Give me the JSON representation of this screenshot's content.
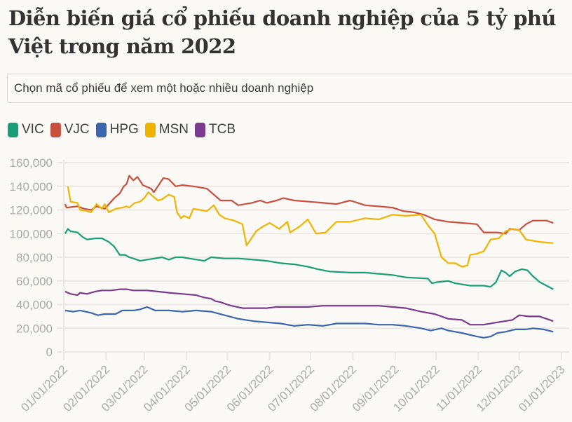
{
  "title": "Diễn biến giá cổ phiếu doanh nghiệp của 5 tỷ phú Việt trong năm 2022",
  "selector": {
    "placeholder": "Chọn mã cổ phiếu để xem một hoặc nhiều doanh nghiệp"
  },
  "chart_data": {
    "type": "line",
    "title": "Diễn biến giá cổ phiếu doanh nghiệp của 5 tỷ phú Việt trong năm 2022",
    "xlabel": "",
    "ylabel": "",
    "ylim": [
      0,
      160000
    ],
    "yticks": [
      0,
      20000,
      40000,
      60000,
      80000,
      100000,
      120000,
      140000,
      160000
    ],
    "ytick_labels": [
      "0",
      "20,000",
      "40,000",
      "60,000",
      "80,000",
      "100,000",
      "120,000",
      "140,000",
      "160,000"
    ],
    "xtick_labels": [
      "01/01/2022",
      "02/01/2022",
      "03/01/2022",
      "04/01/2022",
      "05/01/2022",
      "06/01/2022",
      "07/01/2022",
      "08/01/2022",
      "09/01/2022",
      "10/01/2022",
      "11/01/2022",
      "12/01/2022",
      "01/01/2023"
    ],
    "xtick_days": [
      0,
      31,
      59,
      90,
      120,
      151,
      181,
      212,
      243,
      273,
      304,
      334,
      365
    ],
    "x_unit": "days since 01/01/2022",
    "grid": true,
    "legend": "top-left",
    "series": [
      {
        "name": "VIC",
        "color": "#1a9e77",
        "points": [
          [
            1,
            100000
          ],
          [
            3,
            104000
          ],
          [
            5,
            102000
          ],
          [
            10,
            101000
          ],
          [
            14,
            97000
          ],
          [
            17,
            95000
          ],
          [
            23,
            96000
          ],
          [
            28,
            96000
          ],
          [
            33,
            93000
          ],
          [
            37,
            89000
          ],
          [
            41,
            82000
          ],
          [
            45,
            82000
          ],
          [
            48,
            80000
          ],
          [
            51,
            79000
          ],
          [
            56,
            77000
          ],
          [
            61,
            78000
          ],
          [
            72,
            80000
          ],
          [
            77,
            78000
          ],
          [
            82,
            80000
          ],
          [
            87,
            80000
          ],
          [
            92,
            79000
          ],
          [
            103,
            77000
          ],
          [
            108,
            80000
          ],
          [
            118,
            79000
          ],
          [
            128,
            79000
          ],
          [
            139,
            78000
          ],
          [
            149,
            77000
          ],
          [
            159,
            75000
          ],
          [
            169,
            74000
          ],
          [
            179,
            72000
          ],
          [
            186,
            70000
          ],
          [
            195,
            68000
          ],
          [
            210,
            67000
          ],
          [
            221,
            67000
          ],
          [
            231,
            66000
          ],
          [
            241,
            65000
          ],
          [
            251,
            63000
          ],
          [
            267,
            62000
          ],
          [
            270,
            58000
          ],
          [
            274,
            59000
          ],
          [
            282,
            60000
          ],
          [
            287,
            58000
          ],
          [
            298,
            56000
          ],
          [
            308,
            56000
          ],
          [
            313,
            55000
          ],
          [
            317,
            59000
          ],
          [
            321,
            69000
          ],
          [
            324,
            67000
          ],
          [
            327,
            64000
          ],
          [
            331,
            68000
          ],
          [
            336,
            70000
          ],
          [
            340,
            69000
          ],
          [
            344,
            64000
          ],
          [
            349,
            59000
          ],
          [
            354,
            56000
          ],
          [
            359,
            53000
          ]
        ]
      },
      {
        "name": "VJC",
        "color": "#c8503e",
        "points": [
          [
            1,
            125000
          ],
          [
            2,
            122000
          ],
          [
            10,
            123000
          ],
          [
            15,
            121000
          ],
          [
            20,
            120000
          ],
          [
            24,
            123000
          ],
          [
            30,
            121000
          ],
          [
            37,
            130000
          ],
          [
            41,
            134000
          ],
          [
            44,
            140000
          ],
          [
            46,
            142000
          ],
          [
            48,
            149000
          ],
          [
            51,
            145000
          ],
          [
            54,
            148000
          ],
          [
            58,
            141000
          ],
          [
            64,
            138000
          ],
          [
            66,
            135000
          ],
          [
            69,
            140000
          ],
          [
            73,
            147000
          ],
          [
            77,
            146000
          ],
          [
            82,
            140000
          ],
          [
            87,
            141000
          ],
          [
            95,
            140000
          ],
          [
            100,
            139000
          ],
          [
            105,
            138000
          ],
          [
            110,
            133000
          ],
          [
            115,
            128000
          ],
          [
            123,
            128000
          ],
          [
            128,
            124000
          ],
          [
            133,
            125000
          ],
          [
            138,
            126000
          ],
          [
            144,
            128000
          ],
          [
            149,
            126000
          ],
          [
            156,
            128000
          ],
          [
            161,
            130000
          ],
          [
            169,
            128000
          ],
          [
            180,
            127000
          ],
          [
            190,
            126000
          ],
          [
            200,
            125000
          ],
          [
            210,
            128000
          ],
          [
            221,
            124000
          ],
          [
            231,
            123000
          ],
          [
            241,
            122000
          ],
          [
            249,
            119000
          ],
          [
            257,
            118000
          ],
          [
            264,
            116000
          ],
          [
            272,
            112000
          ],
          [
            282,
            110000
          ],
          [
            293,
            109000
          ],
          [
            303,
            108000
          ],
          [
            308,
            101000
          ],
          [
            318,
            101000
          ],
          [
            324,
            100000
          ],
          [
            327,
            104000
          ],
          [
            334,
            103000
          ],
          [
            339,
            108000
          ],
          [
            344,
            111000
          ],
          [
            349,
            111000
          ],
          [
            354,
            111000
          ],
          [
            359,
            109000
          ]
        ]
      },
      {
        "name": "HPG",
        "color": "#3b66ad",
        "points": [
          [
            1,
            35000
          ],
          [
            7,
            34000
          ],
          [
            12,
            35000
          ],
          [
            20,
            33000
          ],
          [
            25,
            31000
          ],
          [
            30,
            32000
          ],
          [
            38,
            32000
          ],
          [
            43,
            35000
          ],
          [
            51,
            35000
          ],
          [
            56,
            36000
          ],
          [
            61,
            38000
          ],
          [
            67,
            35000
          ],
          [
            77,
            35000
          ],
          [
            87,
            34000
          ],
          [
            97,
            35000
          ],
          [
            108,
            34000
          ],
          [
            118,
            31000
          ],
          [
            128,
            28000
          ],
          [
            139,
            26000
          ],
          [
            149,
            25000
          ],
          [
            159,
            24000
          ],
          [
            169,
            22000
          ],
          [
            179,
            23000
          ],
          [
            190,
            22000
          ],
          [
            200,
            24000
          ],
          [
            210,
            24000
          ],
          [
            221,
            24000
          ],
          [
            231,
            23000
          ],
          [
            241,
            23000
          ],
          [
            251,
            22000
          ],
          [
            262,
            20000
          ],
          [
            269,
            18000
          ],
          [
            277,
            20000
          ],
          [
            282,
            18000
          ],
          [
            292,
            16000
          ],
          [
            303,
            13000
          ],
          [
            308,
            12000
          ],
          [
            313,
            13000
          ],
          [
            318,
            16000
          ],
          [
            324,
            17000
          ],
          [
            331,
            19000
          ],
          [
            339,
            19000
          ],
          [
            344,
            20000
          ],
          [
            352,
            19000
          ],
          [
            359,
            17000
          ]
        ]
      },
      {
        "name": "MSN",
        "color": "#f0b400",
        "points": [
          [
            3,
            140000
          ],
          [
            5,
            127000
          ],
          [
            10,
            126000
          ],
          [
            12,
            120000
          ],
          [
            17,
            119000
          ],
          [
            20,
            118000
          ],
          [
            24,
            125000
          ],
          [
            28,
            121000
          ],
          [
            30,
            125000
          ],
          [
            33,
            118000
          ],
          [
            38,
            121000
          ],
          [
            43,
            122000
          ],
          [
            46,
            123000
          ],
          [
            48,
            122000
          ],
          [
            52,
            126000
          ],
          [
            56,
            127000
          ],
          [
            59,
            130000
          ],
          [
            62,
            135000
          ],
          [
            65,
            132000
          ],
          [
            69,
            128000
          ],
          [
            72,
            129000
          ],
          [
            77,
            133000
          ],
          [
            81,
            131000
          ],
          [
            83,
            118000
          ],
          [
            86,
            113000
          ],
          [
            88,
            115000
          ],
          [
            92,
            113000
          ],
          [
            95,
            121000
          ],
          [
            100,
            120000
          ],
          [
            105,
            119000
          ],
          [
            110,
            124000
          ],
          [
            114,
            116000
          ],
          [
            118,
            113000
          ],
          [
            125,
            111000
          ],
          [
            131,
            108000
          ],
          [
            134,
            90000
          ],
          [
            137,
            95000
          ],
          [
            141,
            102000
          ],
          [
            146,
            106000
          ],
          [
            151,
            109000
          ],
          [
            158,
            104000
          ],
          [
            164,
            110000
          ],
          [
            166,
            101000
          ],
          [
            173,
            106000
          ],
          [
            179,
            112000
          ],
          [
            185,
            100000
          ],
          [
            192,
            101000
          ],
          [
            200,
            110000
          ],
          [
            210,
            110000
          ],
          [
            221,
            113000
          ],
          [
            231,
            112000
          ],
          [
            241,
            116000
          ],
          [
            251,
            115000
          ],
          [
            262,
            116000
          ],
          [
            267,
            107000
          ],
          [
            272,
            100000
          ],
          [
            277,
            80000
          ],
          [
            282,
            75000
          ],
          [
            287,
            75000
          ],
          [
            292,
            72000
          ],
          [
            296,
            73000
          ],
          [
            298,
            82000
          ],
          [
            303,
            83000
          ],
          [
            308,
            85000
          ],
          [
            313,
            95000
          ],
          [
            319,
            96000
          ],
          [
            324,
            102000
          ],
          [
            329,
            104000
          ],
          [
            334,
            103000
          ],
          [
            339,
            95000
          ],
          [
            344,
            94000
          ],
          [
            349,
            93000
          ],
          [
            359,
            92000
          ]
        ]
      },
      {
        "name": "TCB",
        "color": "#7a3a8e",
        "points": [
          [
            1,
            51000
          ],
          [
            5,
            49000
          ],
          [
            10,
            48000
          ],
          [
            12,
            50000
          ],
          [
            17,
            49000
          ],
          [
            23,
            51000
          ],
          [
            28,
            52000
          ],
          [
            35,
            52000
          ],
          [
            41,
            53000
          ],
          [
            46,
            53000
          ],
          [
            51,
            52000
          ],
          [
            61,
            52000
          ],
          [
            69,
            51000
          ],
          [
            77,
            50000
          ],
          [
            87,
            49000
          ],
          [
            97,
            48000
          ],
          [
            103,
            46000
          ],
          [
            108,
            45000
          ],
          [
            111,
            43000
          ],
          [
            115,
            42000
          ],
          [
            120,
            40000
          ],
          [
            123,
            39000
          ],
          [
            131,
            37000
          ],
          [
            141,
            37000
          ],
          [
            149,
            37000
          ],
          [
            156,
            38000
          ],
          [
            169,
            38000
          ],
          [
            179,
            38000
          ],
          [
            190,
            39000
          ],
          [
            205,
            39000
          ],
          [
            221,
            39000
          ],
          [
            231,
            39000
          ],
          [
            241,
            38000
          ],
          [
            251,
            37000
          ],
          [
            262,
            34000
          ],
          [
            272,
            32000
          ],
          [
            282,
            28000
          ],
          [
            292,
            27000
          ],
          [
            298,
            23000
          ],
          [
            308,
            23000
          ],
          [
            318,
            25000
          ],
          [
            329,
            27000
          ],
          [
            334,
            31000
          ],
          [
            341,
            30000
          ],
          [
            349,
            30000
          ],
          [
            354,
            28000
          ],
          [
            359,
            26000
          ]
        ]
      }
    ]
  }
}
